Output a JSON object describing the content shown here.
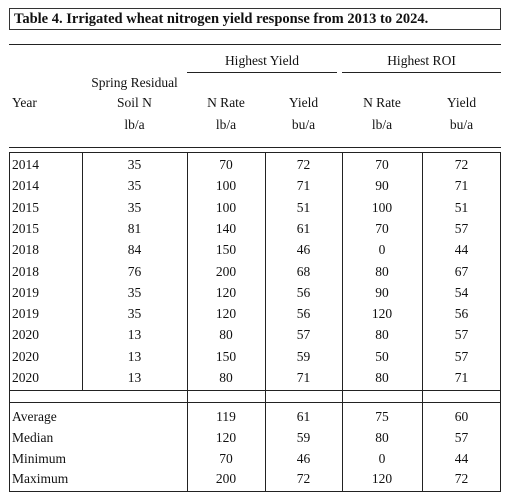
{
  "title": "Table 4. Irrigated wheat nitrogen yield response from 2013 to 2024.",
  "group_headers": {
    "highest_yield": "Highest Yield",
    "highest_roi": "Highest ROI"
  },
  "columns": {
    "year": "Year",
    "residual_line1": "Spring Residual",
    "residual_line2": "Soil N",
    "hy_nrate": "N Rate",
    "hy_yield": "Yield",
    "roi_nrate": "N Rate",
    "roi_yield": "Yield"
  },
  "units": {
    "residual": "lb/a",
    "hy_nrate": "lb/a",
    "hy_yield": "bu/a",
    "roi_nrate": "lb/a",
    "roi_yield": "bu/a"
  },
  "rows": [
    [
      "2014",
      "35",
      "70",
      "72",
      "70",
      "72"
    ],
    [
      "2014",
      "35",
      "100",
      "71",
      "90",
      "71"
    ],
    [
      "2015",
      "35",
      "100",
      "51",
      "100",
      "51"
    ],
    [
      "2015",
      "81",
      "140",
      "61",
      "70",
      "57"
    ],
    [
      "2018",
      "84",
      "150",
      "46",
      "0",
      "44"
    ],
    [
      "2018",
      "76",
      "200",
      "68",
      "80",
      "67"
    ],
    [
      "2019",
      "35",
      "120",
      "56",
      "90",
      "54"
    ],
    [
      "2019",
      "35",
      "120",
      "56",
      "120",
      "56"
    ],
    [
      "2020",
      "13",
      "80",
      "57",
      "80",
      "57"
    ],
    [
      "2020",
      "13",
      "150",
      "59",
      "50",
      "57"
    ],
    [
      "2020",
      "13",
      "80",
      "71",
      "80",
      "71"
    ]
  ],
  "summary": [
    [
      "Average",
      "",
      "119",
      "61",
      "75",
      "60"
    ],
    [
      "Median",
      "",
      "120",
      "59",
      "80",
      "57"
    ],
    [
      "Minimum",
      "",
      "70",
      "46",
      "0",
      "44"
    ],
    [
      "Maximum",
      "",
      "200",
      "72",
      "120",
      "72"
    ]
  ]
}
